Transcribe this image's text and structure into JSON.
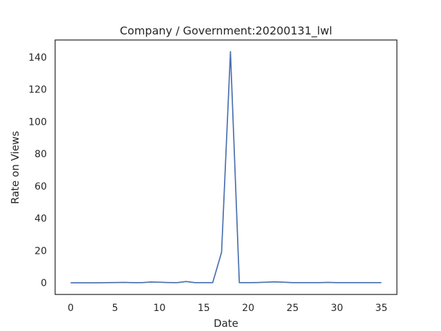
{
  "chart_data": {
    "type": "line",
    "title": "Company / Government:20200131_lwl",
    "xlabel": "Date",
    "ylabel": "Rate on Views",
    "xlim": [
      -1.75,
      36.75
    ],
    "ylim": [
      -7.2,
      150.6
    ],
    "xticks": [
      0,
      5,
      10,
      15,
      20,
      25,
      30,
      35
    ],
    "yticks": [
      0,
      20,
      40,
      60,
      80,
      100,
      120,
      140
    ],
    "grid": false,
    "series": [
      {
        "color": "#4c72b0",
        "x": [
          0,
          1,
          2,
          3,
          4,
          5,
          6,
          7,
          8,
          9,
          10,
          11,
          12,
          13,
          14,
          15,
          16,
          17,
          18,
          19,
          20,
          21,
          22,
          23,
          24,
          25,
          26,
          27,
          28,
          29,
          30,
          31,
          32,
          33,
          34,
          35
        ],
        "y": [
          0,
          0,
          0,
          0,
          0.1,
          0.2,
          0.3,
          0.1,
          0.1,
          0.5,
          0.4,
          0.2,
          0.1,
          0.8,
          0.1,
          0.1,
          0.1,
          19,
          143.4,
          0.1,
          0.1,
          0.2,
          0.4,
          0.6,
          0.4,
          0.1,
          0.1,
          0.1,
          0.1,
          0.3,
          0.1,
          0.1,
          0.1,
          0.1,
          0.1,
          0.1
        ]
      }
    ]
  }
}
